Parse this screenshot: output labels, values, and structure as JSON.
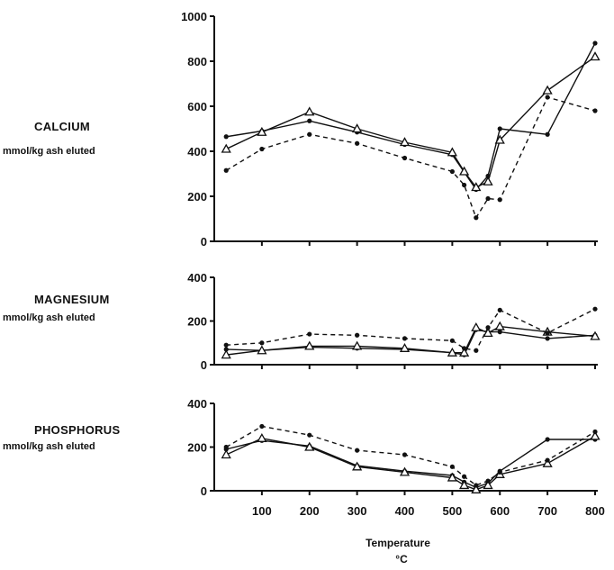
{
  "chart_data": [
    {
      "type": "line",
      "label": "CALCIUM",
      "unit": "mmol/kg ash eluted",
      "ylim": [
        0,
        1000
      ],
      "yticks": [
        "0",
        "200",
        "400",
        "600",
        "800",
        "1000"
      ],
      "xlim": [
        0,
        800
      ],
      "series": [
        {
          "style": "solid",
          "marker": "dot",
          "x": [
            25,
            100,
            200,
            300,
            400,
            500,
            550,
            575,
            600,
            700,
            800
          ],
          "y": [
            465,
            490,
            535,
            485,
            430,
            385,
            230,
            290,
            500,
            475,
            880
          ]
        },
        {
          "style": "solid",
          "marker": "triangle",
          "x": [
            25,
            100,
            200,
            300,
            400,
            500,
            525,
            550,
            575,
            600,
            700,
            800
          ],
          "y": [
            410,
            485,
            575,
            500,
            440,
            395,
            310,
            240,
            265,
            450,
            670,
            820
          ]
        },
        {
          "style": "dashed",
          "marker": "dot",
          "x": [
            25,
            100,
            200,
            300,
            400,
            500,
            525,
            550,
            575,
            600,
            700,
            800
          ],
          "y": [
            315,
            410,
            475,
            435,
            370,
            310,
            250,
            105,
            190,
            185,
            640,
            580
          ]
        }
      ]
    },
    {
      "type": "line",
      "label": "MAGNESIUM",
      "unit": "mmol/kg ash eluted",
      "ylim": [
        0,
        400
      ],
      "yticks": [
        "0",
        "200",
        "400"
      ],
      "xlim": [
        0,
        800
      ],
      "series": [
        {
          "style": "solid",
          "marker": "dot",
          "x": [
            25,
            100,
            200,
            300,
            400,
            500,
            525,
            550,
            575,
            600,
            700,
            800
          ],
          "y": [
            70,
            65,
            80,
            75,
            70,
            55,
            45,
            160,
            150,
            150,
            120,
            135
          ]
        },
        {
          "style": "solid",
          "marker": "triangle",
          "x": [
            25,
            100,
            200,
            300,
            400,
            500,
            525,
            550,
            575,
            600,
            700,
            800
          ],
          "y": [
            45,
            65,
            85,
            85,
            75,
            55,
            55,
            170,
            145,
            175,
            150,
            130
          ]
        },
        {
          "style": "dashed",
          "marker": "dot",
          "x": [
            25,
            100,
            200,
            300,
            400,
            500,
            525,
            550,
            575,
            600,
            700,
            800
          ],
          "y": [
            90,
            100,
            140,
            135,
            120,
            110,
            75,
            65,
            170,
            250,
            145,
            255
          ]
        }
      ]
    },
    {
      "type": "line",
      "label": "PHOSPHORUS",
      "unit": "mmol/kg ash eluted",
      "ylim": [
        0,
        400
      ],
      "yticks": [
        "0",
        "200",
        "400"
      ],
      "xlim": [
        0,
        800
      ],
      "xticks": [
        "100",
        "200",
        "300",
        "400",
        "500",
        "600",
        "700",
        "800"
      ],
      "series": [
        {
          "style": "solid",
          "marker": "dot",
          "x": [
            25,
            100,
            200,
            300,
            400,
            500,
            525,
            550,
            575,
            600,
            700,
            800
          ],
          "y": [
            190,
            230,
            205,
            115,
            90,
            70,
            40,
            15,
            35,
            90,
            235,
            235
          ]
        },
        {
          "style": "solid",
          "marker": "triangle",
          "x": [
            25,
            100,
            200,
            300,
            400,
            500,
            525,
            550,
            575,
            600,
            700,
            800
          ],
          "y": [
            165,
            240,
            200,
            110,
            85,
            60,
            25,
            5,
            25,
            75,
            125,
            250
          ]
        },
        {
          "style": "dashed",
          "marker": "dot",
          "x": [
            25,
            100,
            200,
            300,
            400,
            500,
            525,
            550,
            575,
            600,
            700,
            800
          ],
          "y": [
            200,
            295,
            255,
            185,
            165,
            110,
            65,
            25,
            45,
            85,
            140,
            270
          ]
        }
      ]
    }
  ],
  "x_axis": {
    "label": "Temperature",
    "unit": "°C"
  }
}
